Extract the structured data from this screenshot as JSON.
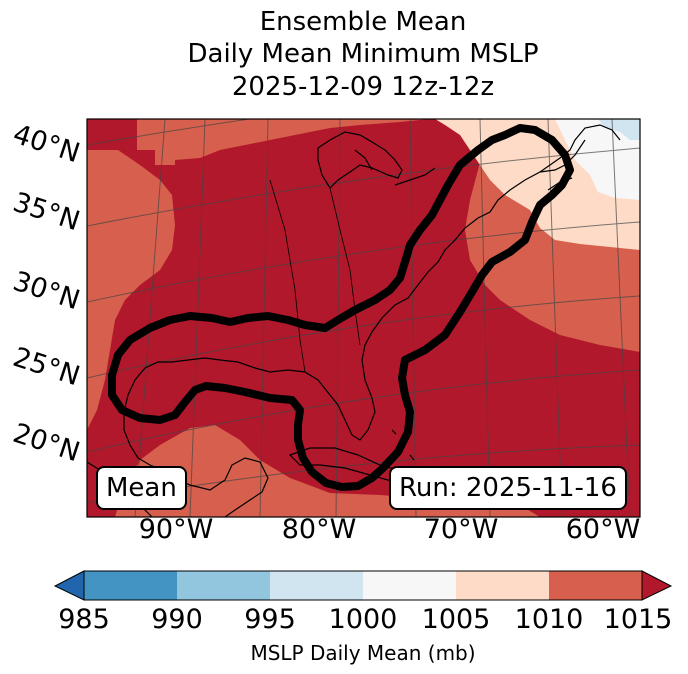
{
  "title": {
    "line1": "Ensemble Mean",
    "line2": "Daily Mean Minimum MSLP",
    "line3": "2025-12-09 12z-12z"
  },
  "map": {
    "lat_labels": [
      "40°N",
      "35°N",
      "30°N",
      "25°N",
      "20°N"
    ],
    "lon_labels": [
      "90°W",
      "80°W",
      "70°W",
      "60°W"
    ],
    "left_box": "Mean",
    "right_box": "Run: 2025-11-16",
    "colors": {
      "c1015": "#b2182b",
      "c1010": "#d6604d",
      "c1005": "#fddbc7",
      "c1000": "#f7f7f7",
      "c995": "#d1e5f0",
      "c990": "#92c5de",
      "c985": "#4393c3",
      "under": "#2166ac",
      "over": "#b2182b"
    }
  },
  "colorbar": {
    "ticks": [
      "985",
      "990",
      "995",
      "1000",
      "1005",
      "1010",
      "1015"
    ],
    "label": "MSLP Daily Mean (mb)",
    "colors": [
      "#4393c3",
      "#92c5de",
      "#d1e5f0",
      "#f7f7f7",
      "#fddbc7",
      "#d6604d"
    ]
  }
}
